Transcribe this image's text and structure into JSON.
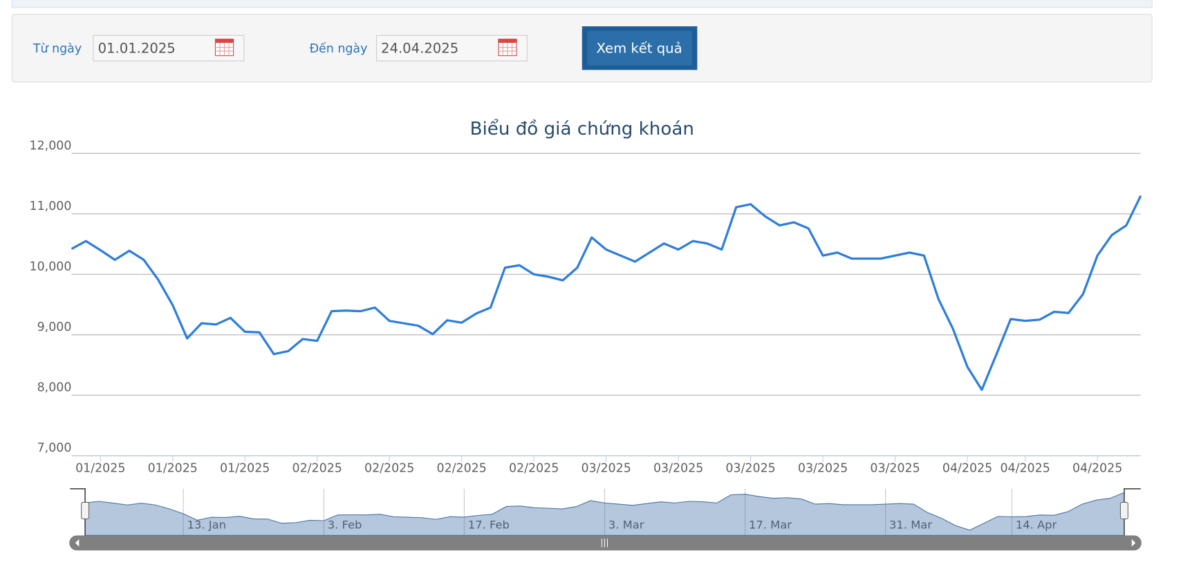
{
  "form": {
    "from_label": "Từ ngày",
    "from_value": "01.01.2025",
    "to_label": "Đến ngày",
    "to_value": "24.04.2025",
    "button": "Xem kết quả"
  },
  "chart_data": {
    "type": "line",
    "title": "Biểu đồ giá chứng khoán",
    "color": "#2f7ed8",
    "categories": [
      null,
      null,
      "01/2025",
      null,
      null,
      null,
      null,
      "01/2025",
      null,
      null,
      null,
      null,
      "01/2025",
      null,
      null,
      null,
      null,
      "02/2025",
      null,
      null,
      null,
      null,
      "02/2025",
      null,
      null,
      null,
      null,
      "02/2025",
      null,
      null,
      null,
      null,
      "02/2025",
      null,
      null,
      null,
      null,
      "03/2025",
      null,
      null,
      null,
      null,
      "03/2025",
      null,
      null,
      null,
      null,
      "03/2025",
      null,
      null,
      null,
      null,
      "03/2025",
      null,
      null,
      null,
      null,
      "03/2025",
      null,
      null,
      null,
      null,
      "04/2025",
      null,
      null,
      null,
      "04/2025",
      null,
      null,
      null,
      null,
      "04/2025",
      null,
      null,
      null
    ],
    "values": [
      10420,
      10550,
      10400,
      10240,
      10390,
      10240,
      9910,
      9490,
      8940,
      9190,
      9170,
      9280,
      9050,
      9040,
      8680,
      8730,
      8930,
      8900,
      9390,
      9400,
      9390,
      9450,
      9230,
      9190,
      9150,
      9010,
      9240,
      9200,
      9350,
      9450,
      10110,
      10150,
      10000,
      9960,
      9900,
      10110,
      10610,
      10410,
      10310,
      10210,
      10360,
      10510,
      10410,
      10550,
      10510,
      10410,
      11110,
      11160,
      10960,
      10810,
      10860,
      10760,
      10310,
      10360,
      10260,
      10260,
      10260,
      10310,
      10360,
      10310,
      9590,
      9100,
      8470,
      8090,
      8670,
      9260,
      9230,
      9250,
      9380,
      9360,
      9670,
      10310,
      10650,
      10810,
      11300
    ],
    "ylim": [
      7000,
      12000
    ],
    "yticks": [
      {
        "value": 7000,
        "label": "7,000"
      },
      {
        "value": 8000,
        "label": "8,000"
      },
      {
        "value": 9000,
        "label": "9,000"
      },
      {
        "value": 10000,
        "label": "10,000"
      },
      {
        "value": 11000,
        "label": "11,000"
      },
      {
        "value": 12000,
        "label": "12,000"
      }
    ],
    "grid": true
  },
  "navigator": {
    "categories": [
      null,
      null,
      null,
      null,
      null,
      null,
      null,
      "13. Jan",
      null,
      null,
      null,
      null,
      null,
      null,
      null,
      null,
      null,
      "3. Feb",
      null,
      null,
      null,
      null,
      null,
      null,
      null,
      null,
      null,
      "17. Feb",
      null,
      null,
      null,
      null,
      null,
      null,
      null,
      null,
      null,
      "3. Mar",
      null,
      null,
      null,
      null,
      null,
      null,
      null,
      null,
      null,
      "17. Mar",
      null,
      null,
      null,
      null,
      null,
      null,
      null,
      null,
      null,
      "31. Mar",
      null,
      null,
      null,
      null,
      null,
      null,
      null,
      null,
      "14. Apr",
      null,
      null,
      null,
      null,
      null,
      null,
      null,
      null
    ]
  }
}
